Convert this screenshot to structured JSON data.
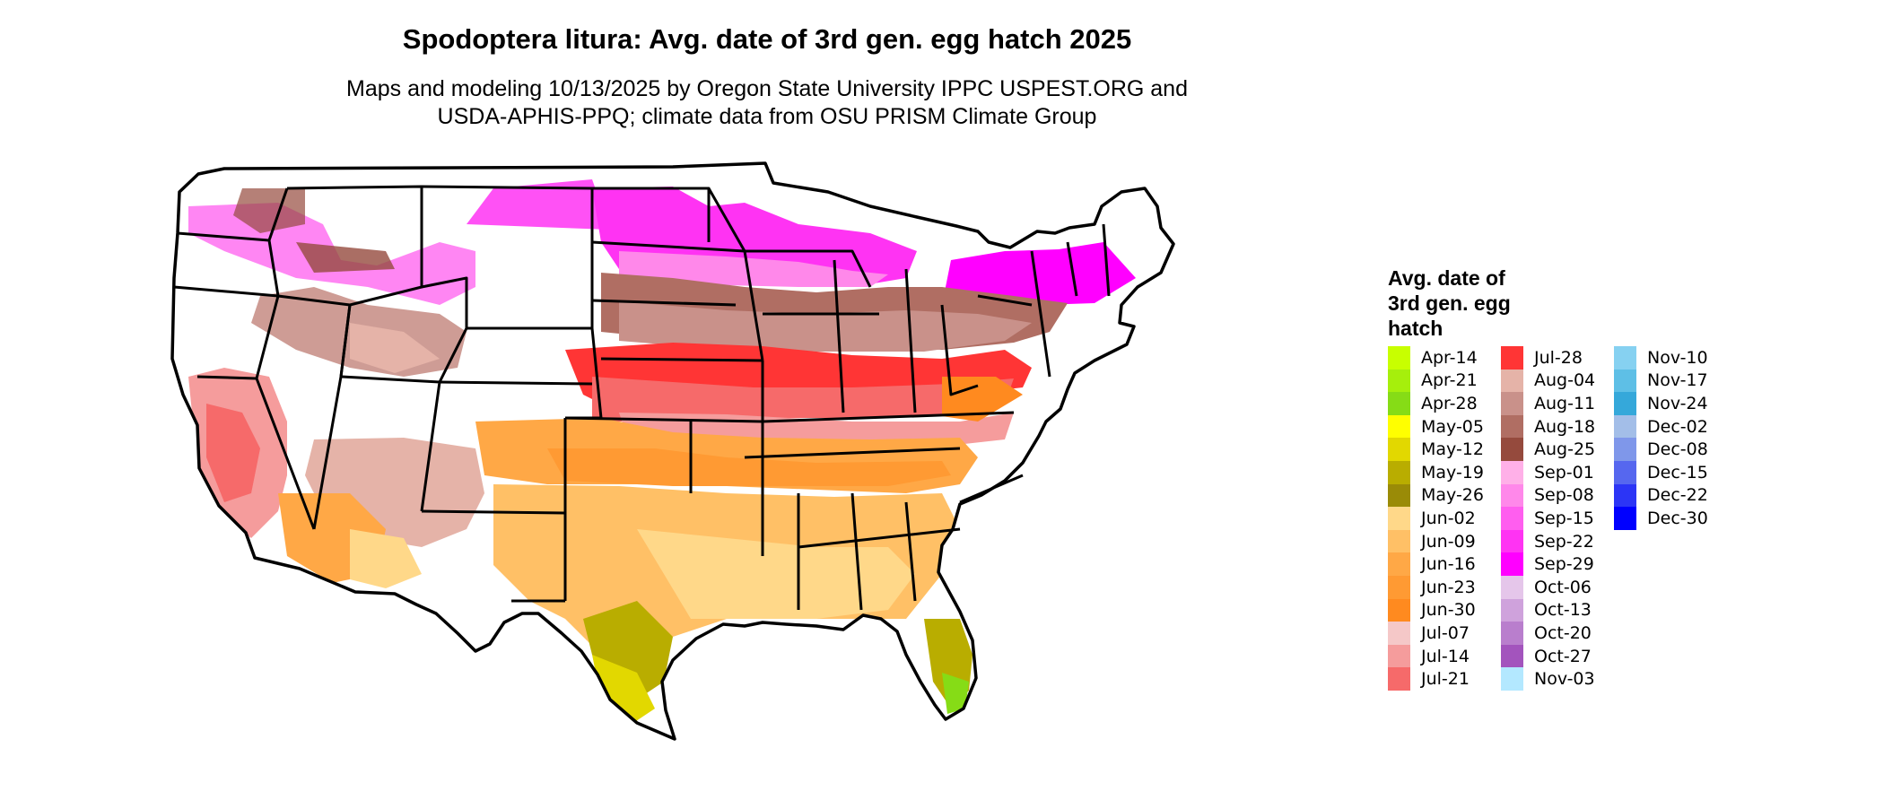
{
  "map": {
    "title": "Spodoptera litura: Avg. date of 3rd gen. egg hatch 2025",
    "subtitle_lines": [
      "Maps and modeling 10/13/2025 by Oregon State University IPPC USPEST.ORG and",
      "USDA-APHIS-PPQ; climate data from OSU PRISM Climate Group"
    ],
    "region": "Contiguous United States",
    "legend": {
      "title_lines": [
        "Avg. date of",
        "3rd gen. egg",
        "hatch"
      ],
      "columns": [
        [
          {
            "label": "Apr-14",
            "color": "#c8ff00"
          },
          {
            "label": "Apr-21",
            "color": "#a6ef0c"
          },
          {
            "label": "Apr-28",
            "color": "#86dc16"
          },
          {
            "label": "May-05",
            "color": "#ffff00"
          },
          {
            "label": "May-12",
            "color": "#e2d800"
          },
          {
            "label": "May-19",
            "color": "#b9ad00"
          },
          {
            "label": "May-26",
            "color": "#9a8b07"
          },
          {
            "label": "Jun-02",
            "color": "#ffd889"
          },
          {
            "label": "Jun-09",
            "color": "#ffc066"
          },
          {
            "label": "Jun-16",
            "color": "#ffa846"
          },
          {
            "label": "Jun-23",
            "color": "#ff9a33"
          },
          {
            "label": "Jun-30",
            "color": "#ff8a1f"
          },
          {
            "label": "Jul-07",
            "color": "#f5c8c8"
          },
          {
            "label": "Jul-14",
            "color": "#f59c9c"
          },
          {
            "label": "Jul-21",
            "color": "#f66a6a"
          }
        ],
        [
          {
            "label": "Jul-28",
            "color": "#ff3535"
          },
          {
            "label": "Aug-04",
            "color": "#e5b3a8"
          },
          {
            "label": "Aug-11",
            "color": "#c9918a"
          },
          {
            "label": "Aug-18",
            "color": "#b06e63"
          },
          {
            "label": "Aug-25",
            "color": "#954a3d"
          },
          {
            "label": "Sep-01",
            "color": "#ffb0e8"
          },
          {
            "label": "Sep-08",
            "color": "#ff88ea"
          },
          {
            "label": "Sep-15",
            "color": "#ff5eef"
          },
          {
            "label": "Sep-22",
            "color": "#ff33f3"
          },
          {
            "label": "Sep-29",
            "color": "#ff00ff"
          },
          {
            "label": "Oct-06",
            "color": "#e5c6ea"
          },
          {
            "label": "Oct-13",
            "color": "#cfa2dc"
          },
          {
            "label": "Oct-20",
            "color": "#b97ecd"
          },
          {
            "label": "Oct-27",
            "color": "#a354bd"
          },
          {
            "label": "Nov-03",
            "color": "#b3e8ff"
          }
        ],
        [
          {
            "label": "Nov-10",
            "color": "#86d1f1"
          },
          {
            "label": "Nov-17",
            "color": "#5ebfe6"
          },
          {
            "label": "Nov-24",
            "color": "#35a8da"
          },
          {
            "label": "Dec-02",
            "color": "#a3bee8"
          },
          {
            "label": "Dec-08",
            "color": "#7f97ea"
          },
          {
            "label": "Dec-15",
            "color": "#5667ef"
          },
          {
            "label": "Dec-22",
            "color": "#2c35f6"
          },
          {
            "label": "Dec-30",
            "color": "#0000ff"
          }
        ]
      ]
    }
  }
}
